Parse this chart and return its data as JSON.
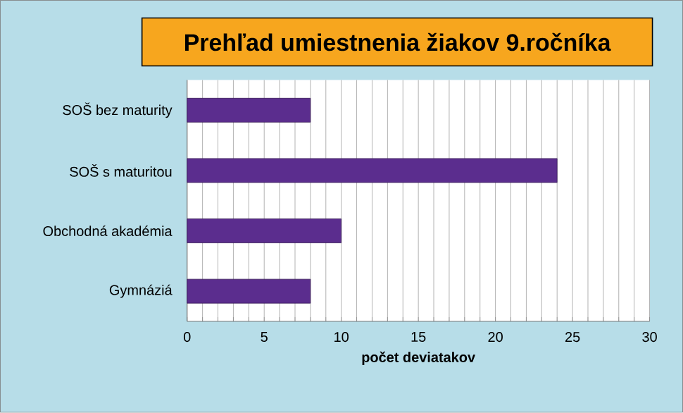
{
  "chart_data": {
    "type": "bar",
    "orientation": "horizontal",
    "title": "Prehľad umiestnenia žiakov 9.ročníka",
    "xlabel": "počet deviatakov",
    "categories": [
      "SOŠ bez maturity",
      "SOŠ s maturitou",
      "Obchodná akadémia",
      "Gymnáziá"
    ],
    "values": [
      8,
      24,
      10,
      8
    ],
    "color": "#5b2d8e",
    "xlim": [
      0,
      30
    ],
    "xticks": [
      0,
      {
        "value": 1,
        "label": null
      },
      {
        "value": 2,
        "label": null
      },
      {
        "value": 3,
        "label": null
      },
      {
        "value": 4,
        "label": null
      },
      5,
      {
        "value": 6,
        "label": null
      },
      {
        "value": 7,
        "label": null
      },
      {
        "value": 8,
        "label": null
      },
      {
        "value": 9,
        "label": null
      },
      10,
      {
        "value": 11,
        "label": null
      },
      {
        "value": 12,
        "label": null
      },
      {
        "value": 13,
        "label": null
      },
      {
        "value": 14,
        "label": null
      },
      15,
      {
        "value": 16,
        "label": null
      },
      {
        "value": 17,
        "label": null
      },
      {
        "value": 18,
        "label": null
      },
      {
        "value": 19,
        "label": null
      },
      20,
      {
        "value": 21,
        "label": null
      },
      {
        "value": 22,
        "label": null
      },
      {
        "value": 23,
        "label": null
      },
      {
        "value": 24,
        "label": null
      },
      25,
      {
        "value": 26,
        "label": null
      },
      {
        "value": 27,
        "label": null
      },
      {
        "value": 28,
        "label": null
      },
      {
        "value": 29,
        "label": null
      },
      30
    ],
    "grid": "x"
  }
}
